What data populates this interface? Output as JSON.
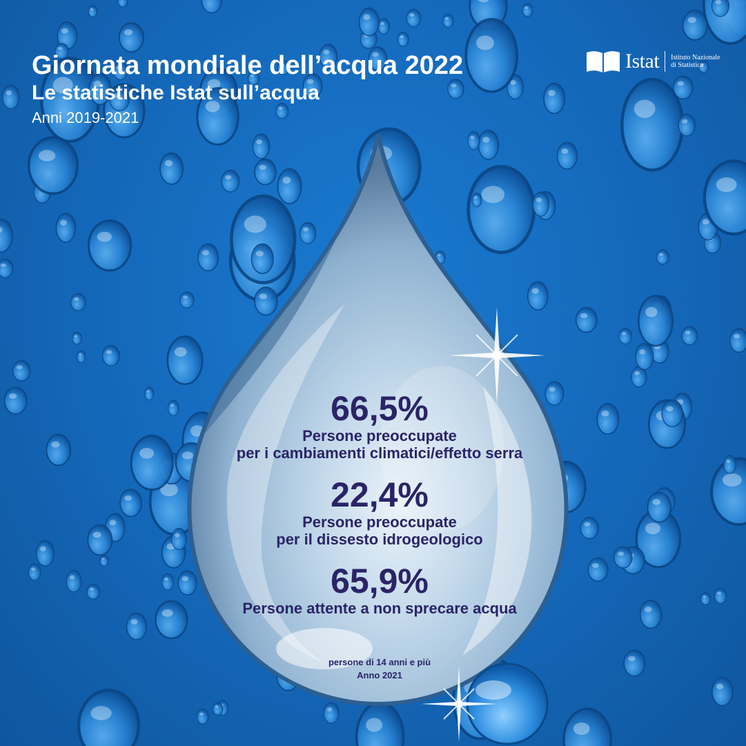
{
  "header": {
    "title": "Giornata mondiale dell’acqua 2022",
    "subtitle": "Le statistiche Istat sull’acqua",
    "years": "Anni 2019-2021"
  },
  "logo": {
    "word": "Istat",
    "line1": "Istituto Nazionale",
    "line2": "di Statistica"
  },
  "stats": [
    {
      "value": "66,5%",
      "label_line1": "Persone preoccupate",
      "label_line2": "per i cambiamenti climatici/effetto serra"
    },
    {
      "value": "22,4%",
      "label_line1": "Persone preoccupate",
      "label_line2": "per il dissesto idrogeologico"
    },
    {
      "value": "65,9%",
      "label_line1": "Persone attente a non sprecare acqua"
    }
  ],
  "footnote": {
    "line1": "persone di 14 anni e più",
    "line2": "Anno 2021"
  },
  "colors": {
    "background": "#1467b8",
    "stat_text": "#2a2467",
    "header_text": "#ffffff"
  }
}
